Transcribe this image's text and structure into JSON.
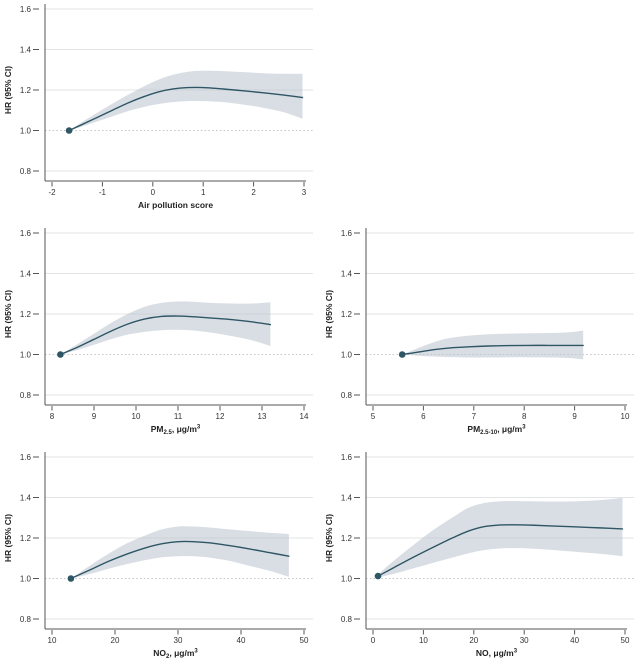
{
  "figure": {
    "ylabel": "HR (95% CI)",
    "reference_line": 1.0,
    "colors": {
      "line": "#2E5665",
      "dot": "#2E5665",
      "band": "#B9C3CD",
      "gridline": "#E2E4E6",
      "ref_dotted": "#C4C7CA",
      "axis": "#555555",
      "tick_text": "#333333",
      "title_text": "#222222"
    }
  },
  "chart_data": [
    {
      "id": "air-pollution-score",
      "type": "line",
      "title": "",
      "ylabel": "HR (95% CI)",
      "xlabel_plain": "Air pollution score",
      "xlabel_parts": [
        {
          "text": "Air pollution score",
          "style": "normal"
        }
      ],
      "yticks": [
        0.8,
        1.0,
        1.2,
        1.4,
        1.6
      ],
      "ylim": [
        0.75,
        1.63
      ],
      "xticks": [
        -2,
        -1,
        0,
        1,
        2,
        3
      ],
      "ref_line": 1.0,
      "legend": "none",
      "grid": "horizontal",
      "series": {
        "x": [
          -1.66,
          -1.4,
          -1.1,
          -0.8,
          -0.5,
          -0.2,
          0.1,
          0.4,
          0.7,
          1.0,
          1.4,
          1.8,
          2.2,
          2.6,
          2.97
        ],
        "mean": [
          1.0,
          1.03,
          1.065,
          1.1,
          1.135,
          1.165,
          1.19,
          1.205,
          1.212,
          1.212,
          1.205,
          1.196,
          1.186,
          1.175,
          1.163
        ],
        "lower": [
          1.0,
          1.02,
          1.045,
          1.07,
          1.095,
          1.115,
          1.13,
          1.14,
          1.145,
          1.145,
          1.14,
          1.128,
          1.112,
          1.09,
          1.058
        ],
        "upper": [
          1.0,
          1.042,
          1.088,
          1.133,
          1.175,
          1.215,
          1.25,
          1.275,
          1.29,
          1.295,
          1.293,
          1.288,
          1.283,
          1.28,
          1.28
        ]
      },
      "start_dot": {
        "x": -1.66,
        "y": 1.0
      }
    },
    {
      "id": "pm25",
      "type": "line",
      "title": "",
      "ylabel": "HR (95% CI)",
      "xlabel_plain": "PM2.5, ug/m3",
      "xlabel_parts": [
        {
          "text": "PM",
          "style": "normal"
        },
        {
          "text": "2.5",
          "style": "sub"
        },
        {
          "text": ", μg/m",
          "style": "normal"
        },
        {
          "text": "3",
          "style": "sup"
        }
      ],
      "yticks": [
        0.8,
        1.0,
        1.2,
        1.4,
        1.6
      ],
      "ylim": [
        0.75,
        1.63
      ],
      "xticks": [
        8,
        9,
        10,
        11,
        12,
        13,
        14
      ],
      "ref_line": 1.0,
      "legend": "none",
      "grid": "horizontal",
      "series": {
        "x": [
          8.2,
          8.6,
          9.0,
          9.4,
          9.8,
          10.2,
          10.6,
          11.0,
          11.4,
          11.8,
          12.3,
          12.8,
          13.2
        ],
        "mean": [
          1.0,
          1.035,
          1.075,
          1.115,
          1.15,
          1.175,
          1.188,
          1.19,
          1.186,
          1.18,
          1.172,
          1.16,
          1.148
        ],
        "lower": [
          1.0,
          1.022,
          1.048,
          1.075,
          1.098,
          1.112,
          1.12,
          1.122,
          1.118,
          1.108,
          1.09,
          1.068,
          1.042
        ],
        "upper": [
          1.0,
          1.05,
          1.103,
          1.155,
          1.2,
          1.235,
          1.255,
          1.262,
          1.26,
          1.255,
          1.252,
          1.252,
          1.258
        ]
      },
      "start_dot": {
        "x": 8.2,
        "y": 1.0
      }
    },
    {
      "id": "pm25-10",
      "type": "line",
      "title": "",
      "ylabel": "HR (95% CI)",
      "xlabel_plain": "PM2.5-10, ug/m3",
      "xlabel_parts": [
        {
          "text": "PM",
          "style": "normal"
        },
        {
          "text": "2.5-10",
          "style": "sub"
        },
        {
          "text": ", μg/m",
          "style": "normal"
        },
        {
          "text": "3",
          "style": "sup"
        }
      ],
      "yticks": [
        0.8,
        1.0,
        1.2,
        1.4,
        1.6
      ],
      "ylim": [
        0.75,
        1.63
      ],
      "xticks": [
        5,
        6,
        7,
        8,
        9,
        10
      ],
      "ref_line": 1.0,
      "legend": "none",
      "grid": "horizontal",
      "series": {
        "x": [
          5.58,
          5.9,
          6.2,
          6.5,
          6.9,
          7.3,
          7.7,
          8.1,
          8.5,
          8.9,
          9.17
        ],
        "mean": [
          1.0,
          1.012,
          1.024,
          1.032,
          1.038,
          1.042,
          1.044,
          1.045,
          1.045,
          1.045,
          1.045
        ],
        "lower": [
          1.0,
          0.994,
          0.99,
          0.987,
          0.985,
          0.985,
          0.986,
          0.986,
          0.985,
          0.982,
          0.976
        ],
        "upper": [
          1.0,
          1.032,
          1.06,
          1.08,
          1.093,
          1.1,
          1.103,
          1.105,
          1.106,
          1.11,
          1.118
        ]
      },
      "start_dot": {
        "x": 5.58,
        "y": 1.0
      }
    },
    {
      "id": "no2",
      "type": "line",
      "title": "",
      "ylabel": "HR (95% CI)",
      "xlabel_plain": "NO2, ug/m3",
      "xlabel_parts": [
        {
          "text": "NO",
          "style": "normal"
        },
        {
          "text": "2",
          "style": "sub"
        },
        {
          "text": ", μg/m",
          "style": "normal"
        },
        {
          "text": "3",
          "style": "sup"
        }
      ],
      "yticks": [
        0.8,
        1.0,
        1.2,
        1.4,
        1.6
      ],
      "ylim": [
        0.75,
        1.63
      ],
      "xticks": [
        10,
        20,
        30,
        40,
        50
      ],
      "ref_line": 1.0,
      "legend": "none",
      "grid": "horizontal",
      "series": {
        "x": [
          13,
          16,
          19,
          22,
          25,
          27.5,
          30,
          32.5,
          35,
          38,
          41,
          44.5,
          47.6
        ],
        "mean": [
          1.0,
          1.042,
          1.085,
          1.122,
          1.153,
          1.172,
          1.182,
          1.182,
          1.176,
          1.163,
          1.148,
          1.128,
          1.11
        ],
        "lower": [
          1.0,
          1.022,
          1.048,
          1.072,
          1.092,
          1.105,
          1.11,
          1.11,
          1.103,
          1.088,
          1.065,
          1.038,
          1.008
        ],
        "upper": [
          1.0,
          1.063,
          1.123,
          1.175,
          1.215,
          1.243,
          1.257,
          1.257,
          1.252,
          1.243,
          1.235,
          1.226,
          1.22
        ]
      },
      "start_dot": {
        "x": 13,
        "y": 1.0
      }
    },
    {
      "id": "no",
      "type": "line",
      "title": "",
      "ylabel": "HR (95% CI)",
      "xlabel_plain": "NO, ug/m3",
      "xlabel_parts": [
        {
          "text": "NO, μg/m",
          "style": "normal"
        },
        {
          "text": "3",
          "style": "sup"
        }
      ],
      "yticks": [
        0.8,
        1.0,
        1.2,
        1.4,
        1.6
      ],
      "ylim": [
        0.75,
        1.63
      ],
      "xticks": [
        0,
        10,
        20,
        30,
        40,
        50
      ],
      "ref_line": 1.0,
      "legend": "none",
      "grid": "horizontal",
      "series": {
        "x": [
          1,
          4,
          8,
          12,
          16,
          19,
          22,
          25,
          28,
          32,
          36,
          40,
          45,
          49.5
        ],
        "mean": [
          1.012,
          1.052,
          1.105,
          1.155,
          1.203,
          1.235,
          1.256,
          1.264,
          1.265,
          1.263,
          1.259,
          1.255,
          1.25,
          1.245
        ],
        "lower": [
          1.005,
          1.022,
          1.05,
          1.078,
          1.105,
          1.125,
          1.14,
          1.148,
          1.15,
          1.147,
          1.14,
          1.132,
          1.122,
          1.11
        ],
        "upper": [
          1.02,
          1.085,
          1.165,
          1.24,
          1.305,
          1.35,
          1.372,
          1.381,
          1.382,
          1.381,
          1.38,
          1.381,
          1.387,
          1.398
        ]
      },
      "start_dot": {
        "x": 1,
        "y": 1.012
      }
    }
  ]
}
